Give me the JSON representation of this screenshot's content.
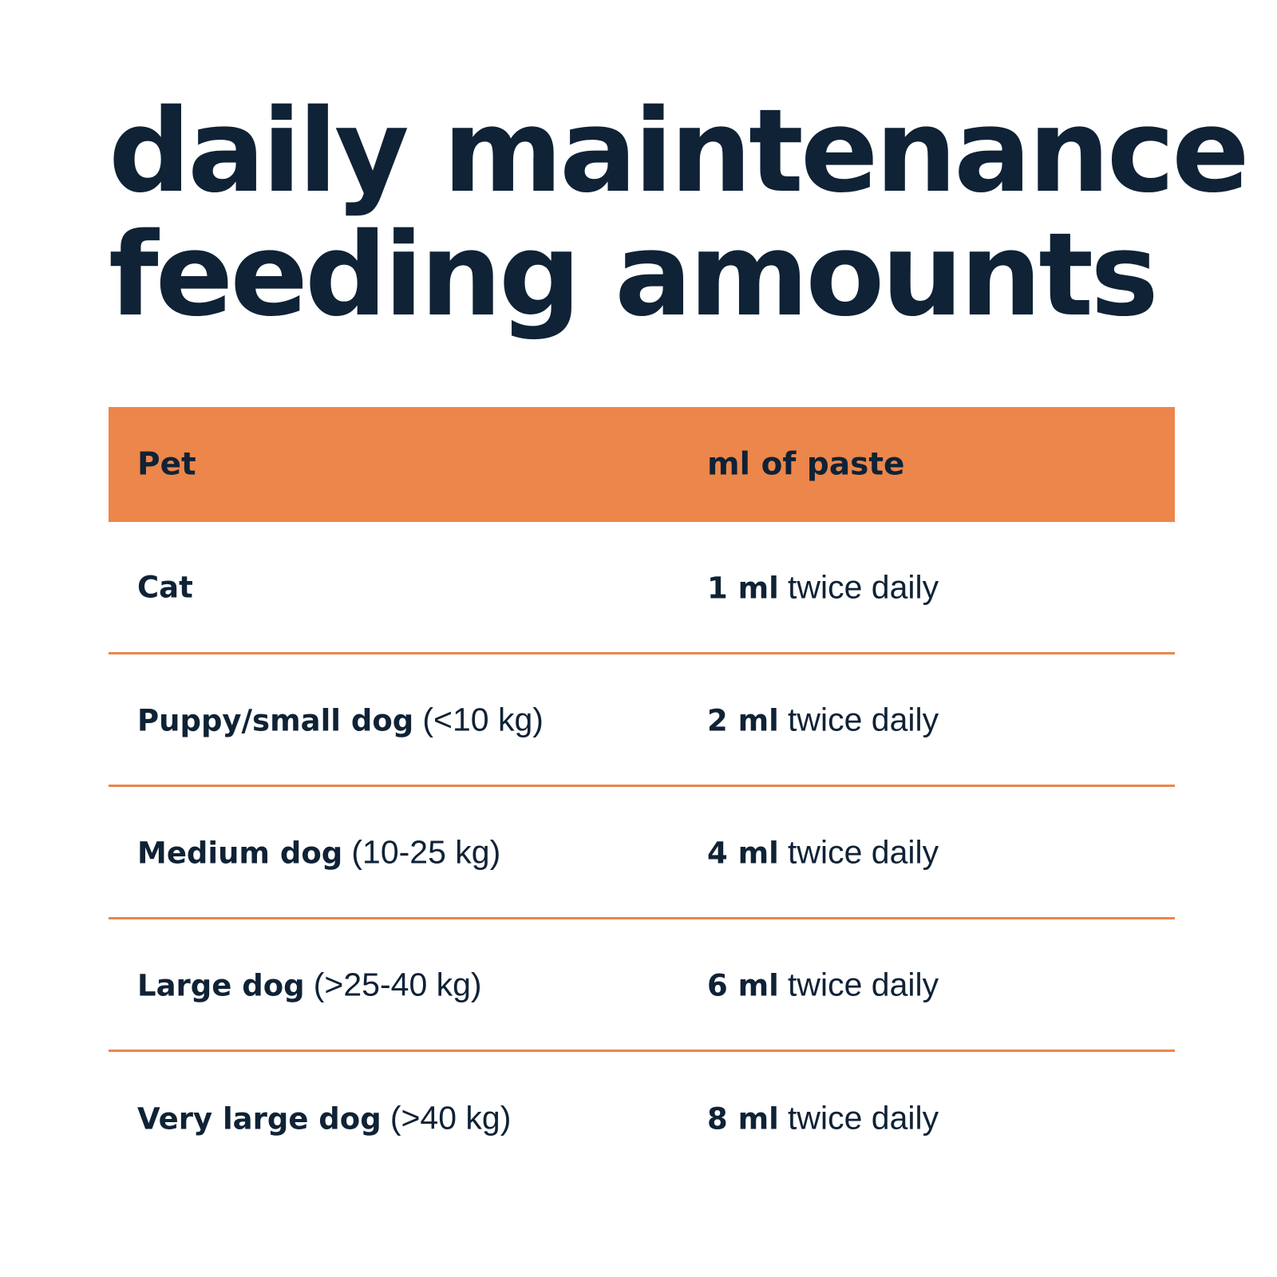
{
  "title": {
    "line1": "daily maintenance",
    "line2": "feeding amounts"
  },
  "table": {
    "headers": {
      "pet": "Pet",
      "amount": "ml of paste"
    },
    "rows": [
      {
        "pet": "Cat",
        "weight": "",
        "dose": "1 ml",
        "frequency": "twice daily"
      },
      {
        "pet": "Puppy/small dog",
        "weight": "(<10 kg)",
        "dose": "2 ml",
        "frequency": "twice daily"
      },
      {
        "pet": "Medium dog",
        "weight": "(10-25 kg)",
        "dose": "4 ml",
        "frequency": "twice daily"
      },
      {
        "pet": "Large dog",
        "weight": "(>25-40 kg)",
        "dose": "6 ml",
        "frequency": "twice daily"
      },
      {
        "pet": "Very large dog",
        "weight": "(>40 kg)",
        "dose": "8 ml",
        "frequency": "twice daily"
      }
    ]
  },
  "colors": {
    "accent": "#ec864a",
    "text": "#0f2236",
    "background": "#ffffff"
  }
}
